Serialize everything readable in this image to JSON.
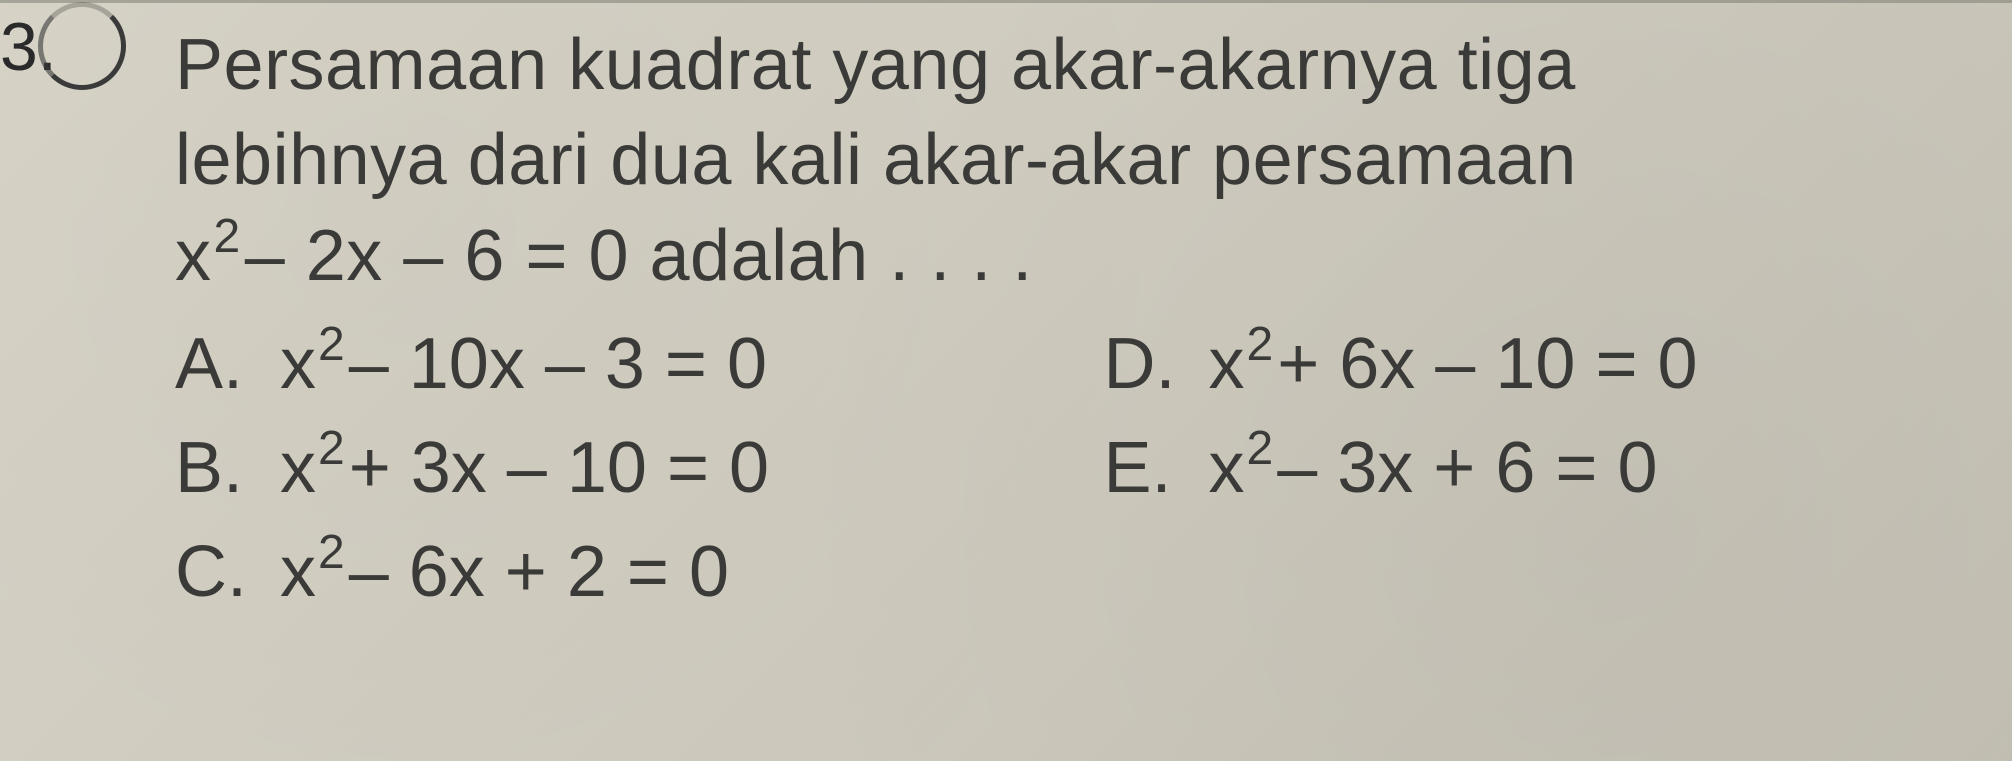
{
  "question": {
    "number": "3.",
    "line1": "Persamaan kuadrat yang akar-akarnya tiga",
    "line2": "lebihnya dari dua kali akar-akar persamaan",
    "equation_prefix": "x",
    "equation_exp": "2",
    "equation_rest": " – 2x – 6 = 0 adalah . . . ."
  },
  "options": {
    "A": {
      "letter": "A.",
      "prefix": "x",
      "exp": "2",
      "rest": " – 10x – 3 = 0"
    },
    "B": {
      "letter": "B.",
      "prefix": "x",
      "exp": "2",
      "rest": " + 3x – 10 = 0"
    },
    "C": {
      "letter": "C.",
      "prefix": "x",
      "exp": "2",
      "rest": " – 6x + 2 = 0"
    },
    "D": {
      "letter": "D.",
      "prefix": "x",
      "exp": "2",
      "rest": " + 6x – 10 = 0"
    },
    "E": {
      "letter": "E.",
      "prefix": "x",
      "exp": "2",
      "rest": " – 3x + 6 = 0"
    }
  },
  "style": {
    "background_color": "#d2cec2",
    "text_color": "#3a3a38",
    "font_size_main": 72,
    "font_size_sup": 48,
    "circle_border_color": "#3a3a3a"
  }
}
